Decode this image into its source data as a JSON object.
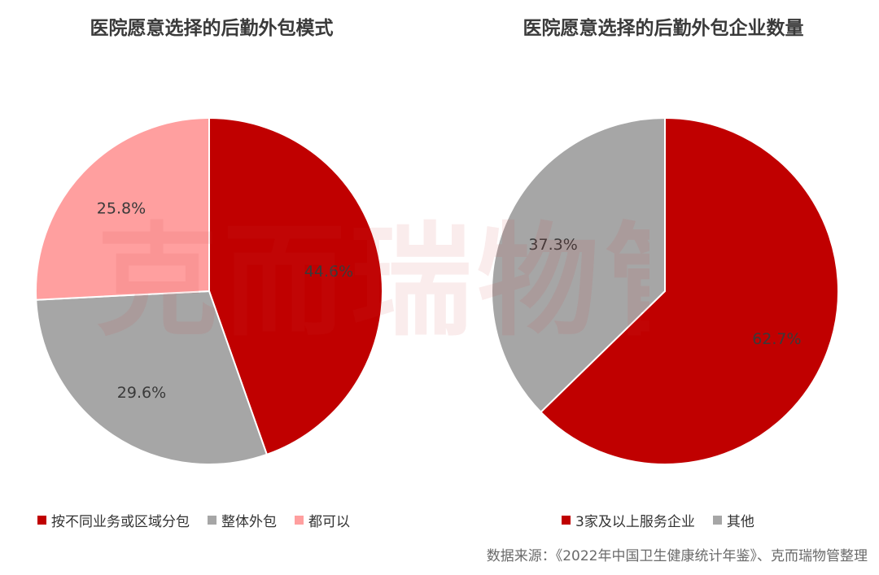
{
  "watermark": "克而瑞物管",
  "chart_data": [
    {
      "type": "pie",
      "title": "医院愿意选择的后勤外包模式",
      "unit": "%",
      "slices": [
        {
          "label": "按不同业务或区域分包",
          "value": 44.6,
          "display": "44.6%",
          "color": "#c00000"
        },
        {
          "label": "整体外包",
          "value": 29.6,
          "display": "29.6%",
          "color": "#a6a6a6"
        },
        {
          "label": "都可以",
          "value": 25.8,
          "display": "25.8%",
          "color": "#ff9f9f"
        }
      ],
      "legend_position": "bottom"
    },
    {
      "type": "pie",
      "title": "医院愿意选择的后勤外包企业数量",
      "unit": "%",
      "slices": [
        {
          "label": "3家及以上服务企业",
          "value": 62.7,
          "display": "62.7%",
          "color": "#c00000"
        },
        {
          "label": "其他",
          "value": 37.3,
          "display": "37.3%",
          "color": "#a6a6a6"
        }
      ],
      "legend_position": "bottom"
    }
  ],
  "source": "数据来源：《2022年中国卫生健康统计年鉴》、克而瑞物管整理"
}
